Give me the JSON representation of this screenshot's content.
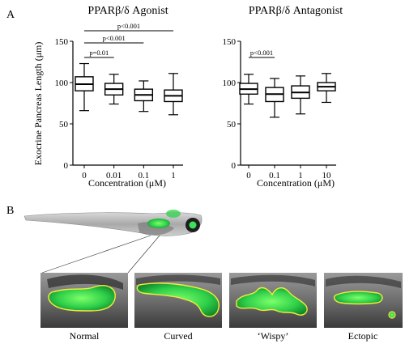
{
  "panel_labels": {
    "a": "A",
    "b": "B"
  },
  "chart_data": [
    {
      "type": "boxplot",
      "title": "PPARβ/δ Agonist",
      "ylabel": "Exocrine Pancreas Length (μm)",
      "xlabel": "Concentration (μM)",
      "ylim": [
        0,
        150
      ],
      "yticks": [
        0,
        50,
        100,
        150
      ],
      "categories": [
        "0",
        "0.01",
        "0.1",
        "1"
      ],
      "boxes": [
        {
          "min": 66,
          "q1": 90,
          "median": 98,
          "q3": 107,
          "max": 123
        },
        {
          "min": 74,
          "q1": 85,
          "median": 92,
          "q3": 99,
          "max": 110
        },
        {
          "min": 65,
          "q1": 78,
          "median": 85,
          "q3": 92,
          "max": 102
        },
        {
          "min": 61,
          "q1": 77,
          "median": 84,
          "q3": 91,
          "max": 111
        }
      ],
      "annotations": [
        {
          "from": "0",
          "to": "0.01",
          "text": "p=0.01"
        },
        {
          "from": "0",
          "to": "0.1",
          "text": "p<0.001"
        },
        {
          "from": "0",
          "to": "1",
          "text": "p<0.001"
        }
      ]
    },
    {
      "type": "boxplot",
      "title": "PPARβ/δ Antagonist",
      "ylabel": "",
      "xlabel": "Concentration (μM)",
      "ylim": [
        0,
        150
      ],
      "yticks": [
        0,
        50,
        100,
        150
      ],
      "categories": [
        "0",
        "0.1",
        "1",
        "10"
      ],
      "boxes": [
        {
          "min": 74,
          "q1": 86,
          "median": 92,
          "q3": 99,
          "max": 110
        },
        {
          "min": 58,
          "q1": 77,
          "median": 86,
          "q3": 94,
          "max": 105
        },
        {
          "min": 62,
          "q1": 81,
          "median": 88,
          "q3": 96,
          "max": 108
        },
        {
          "min": 76,
          "q1": 90,
          "median": 95,
          "q3": 100,
          "max": 111
        }
      ],
      "annotations": [
        {
          "from": "0",
          "to": "0.1",
          "text": "p<0.001"
        }
      ]
    }
  ],
  "morphology_labels": [
    "Normal",
    "Curved",
    "‘Wispy’",
    "Ectopic"
  ]
}
